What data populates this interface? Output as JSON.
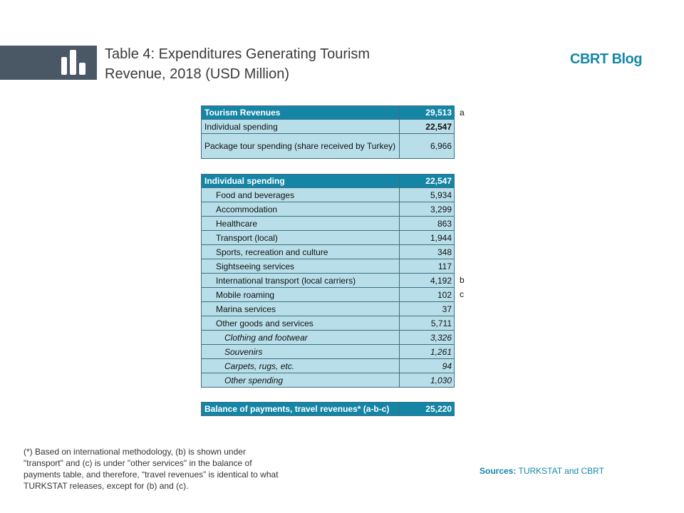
{
  "header": {
    "title_prefix": "Table 4:",
    "title": "Expenditures Generating Tourism Revenue, 2018 (USD Million)",
    "brand": "CBRT Blog"
  },
  "tables": [
    {
      "header": {
        "label": "Tourism Revenues",
        "value": "29,513",
        "note": "a"
      },
      "rows": [
        {
          "label": "Individual spending",
          "value": "22,547"
        },
        {
          "label": "Package tour spending (share received by Turkey)",
          "value": "6,966"
        }
      ]
    },
    {
      "header": {
        "label": "Individual spending",
        "value": "22,547"
      },
      "rows": [
        {
          "label": "Food and beverages",
          "value": "5,934"
        },
        {
          "label": "Accommodation",
          "value": "3,299"
        },
        {
          "label": "Healthcare",
          "value": "863"
        },
        {
          "label": "Transport (local)",
          "value": "1,944"
        },
        {
          "label": "Sports, recreation and culture",
          "value": "348"
        },
        {
          "label": "Sightseeing services",
          "value": "117"
        },
        {
          "label": "International transport (local carriers)",
          "value": "4,192",
          "note": "b"
        },
        {
          "label": "Mobile roaming",
          "value": "102",
          "note": "c"
        },
        {
          "label": "Marina services",
          "value": "37"
        },
        {
          "label": "Other goods and services",
          "value": "5,711",
          "rows": [
            {
              "label": "Clothing and footwear",
              "value": "3,326"
            },
            {
              "label": "Souvenirs",
              "value": "1,261"
            },
            {
              "label": "Carpets, rugs, etc.",
              "value": "94"
            },
            {
              "label": "Other spending",
              "value": "1,030"
            }
          ]
        }
      ]
    },
    {
      "header": {
        "label": "Balance of payments, travel revenues* (a-b-c)",
        "value": "25,220"
      }
    }
  ],
  "footnote": "(*) Based on international methodology, (b) is shown under \"transport\" and (c) is under \"other services\" in the balance of payments table, and therefore, “travel revenues” is identical to what TURKSTAT releases, except for (b) and (c).",
  "sources": {
    "label": "Sources:",
    "text": "TURKSTAT and CBRT"
  }
}
